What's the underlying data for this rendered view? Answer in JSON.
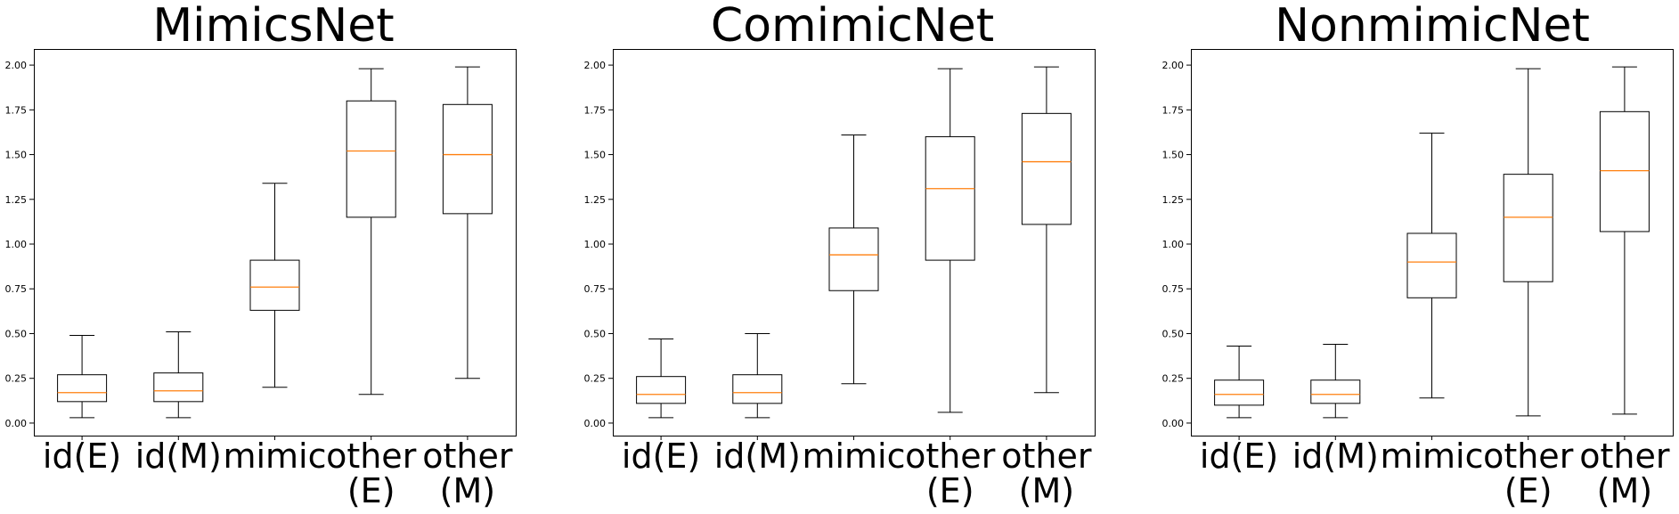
{
  "chart_data": [
    {
      "type": "box",
      "title": "MimicsNet",
      "categories": [
        [
          "id(E)"
        ],
        [
          "id(M)"
        ],
        [
          "mimic"
        ],
        [
          "other",
          "(E)"
        ],
        [
          "other",
          "(M)"
        ]
      ],
      "yticks": [
        "0.00",
        "0.25",
        "0.50",
        "0.75",
        "1.00",
        "1.25",
        "1.50",
        "1.75",
        "2.00"
      ],
      "ylim": [
        -0.07,
        2.09
      ],
      "grid": false,
      "boxes": [
        {
          "whislo": 0.03,
          "q1": 0.12,
          "med": 0.17,
          "q3": 0.27,
          "whishi": 0.49
        },
        {
          "whislo": 0.03,
          "q1": 0.12,
          "med": 0.18,
          "q3": 0.28,
          "whishi": 0.51
        },
        {
          "whislo": 0.2,
          "q1": 0.63,
          "med": 0.76,
          "q3": 0.91,
          "whishi": 1.34
        },
        {
          "whislo": 0.16,
          "q1": 1.15,
          "med": 1.52,
          "q3": 1.8,
          "whishi": 1.98
        },
        {
          "whislo": 0.25,
          "q1": 1.17,
          "med": 1.5,
          "q3": 1.78,
          "whishi": 1.99
        }
      ]
    },
    {
      "type": "box",
      "title": "ComimicNet",
      "categories": [
        [
          "id(E)"
        ],
        [
          "id(M)"
        ],
        [
          "mimic"
        ],
        [
          "other",
          "(E)"
        ],
        [
          "other",
          "(M)"
        ]
      ],
      "yticks": [
        "0.00",
        "0.25",
        "0.50",
        "0.75",
        "1.00",
        "1.25",
        "1.50",
        "1.75",
        "2.00"
      ],
      "ylim": [
        -0.07,
        2.09
      ],
      "grid": false,
      "boxes": [
        {
          "whislo": 0.03,
          "q1": 0.11,
          "med": 0.16,
          "q3": 0.26,
          "whishi": 0.47
        },
        {
          "whislo": 0.03,
          "q1": 0.11,
          "med": 0.17,
          "q3": 0.27,
          "whishi": 0.5
        },
        {
          "whislo": 0.22,
          "q1": 0.74,
          "med": 0.94,
          "q3": 1.09,
          "whishi": 1.61
        },
        {
          "whislo": 0.06,
          "q1": 0.91,
          "med": 1.31,
          "q3": 1.6,
          "whishi": 1.98
        },
        {
          "whislo": 0.17,
          "q1": 1.11,
          "med": 1.46,
          "q3": 1.73,
          "whishi": 1.99
        }
      ]
    },
    {
      "type": "box",
      "title": "NonmimicNet",
      "categories": [
        [
          "id(E)"
        ],
        [
          "id(M)"
        ],
        [
          "mimic"
        ],
        [
          "other",
          "(E)"
        ],
        [
          "other",
          "(M)"
        ]
      ],
      "yticks": [
        "0.00",
        "0.25",
        "0.50",
        "0.75",
        "1.00",
        "1.25",
        "1.50",
        "1.75",
        "2.00"
      ],
      "ylim": [
        -0.07,
        2.09
      ],
      "grid": false,
      "boxes": [
        {
          "whislo": 0.03,
          "q1": 0.1,
          "med": 0.16,
          "q3": 0.24,
          "whishi": 0.43
        },
        {
          "whislo": 0.03,
          "q1": 0.11,
          "med": 0.16,
          "q3": 0.24,
          "whishi": 0.44
        },
        {
          "whislo": 0.14,
          "q1": 0.7,
          "med": 0.9,
          "q3": 1.06,
          "whishi": 1.62
        },
        {
          "whislo": 0.04,
          "q1": 0.79,
          "med": 1.15,
          "q3": 1.39,
          "whishi": 1.98
        },
        {
          "whislo": 0.05,
          "q1": 1.07,
          "med": 1.41,
          "q3": 1.74,
          "whishi": 1.99
        }
      ]
    }
  ],
  "colors": {
    "median": "#ff7f0e",
    "box": "#000000",
    "axes": "#000000"
  }
}
